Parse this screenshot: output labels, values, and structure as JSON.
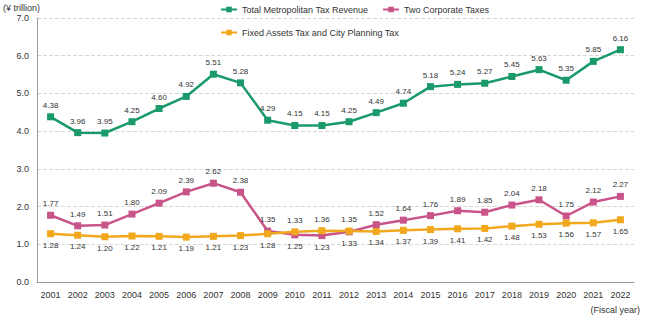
{
  "chart_data": {
    "type": "line",
    "y_label": "(¥ trillion)",
    "x_label": "(Fiscal year)",
    "categories": [
      "2001",
      "2002",
      "2003",
      "2004",
      "2005",
      "2006",
      "2007",
      "2008",
      "2009",
      "2010",
      "2011",
      "2012",
      "2013",
      "2014",
      "2015",
      "2016",
      "2017",
      "2018",
      "2019",
      "2020",
      "2021",
      "2022"
    ],
    "series": [
      {
        "name": "Total Metropolitan Tax Revenue",
        "color": "#1a9a6a",
        "marker": "square",
        "values": [
          4.38,
          3.96,
          3.95,
          4.25,
          4.6,
          4.92,
          5.51,
          5.28,
          4.29,
          4.15,
          4.15,
          4.25,
          4.49,
          4.74,
          5.18,
          5.24,
          5.27,
          5.45,
          5.63,
          5.35,
          5.85,
          6.16
        ],
        "value_labels": [
          "4.38",
          "3.96",
          "3.95",
          "4.25",
          "4.60",
          "4.92",
          "5.51",
          "5.28",
          "4.29",
          "4.15",
          "4.15",
          "4.25",
          "4.49",
          "4.74",
          "5.18",
          "5.24",
          "5.27",
          "5.45",
          "5.63",
          "5.35",
          "5.85",
          "6.16"
        ]
      },
      {
        "name": "Two Corporate Taxes",
        "color": "#c8548a",
        "marker": "square",
        "values": [
          1.77,
          1.49,
          1.51,
          1.8,
          2.09,
          2.39,
          2.62,
          2.38,
          1.35,
          1.25,
          1.23,
          1.33,
          1.52,
          1.64,
          1.76,
          1.89,
          1.85,
          2.04,
          2.18,
          1.75,
          2.12,
          2.27
        ],
        "value_labels": [
          "1.77",
          "1.49",
          "1.51",
          "1.80",
          "2.09",
          "2.39",
          "2.62",
          "2.38",
          "1.35",
          "1.25",
          "1.23",
          "1.33",
          "1.52",
          "1.64",
          "1.76",
          "1.89",
          "1.85",
          "2.04",
          "2.18",
          "1.75",
          "2.12",
          "2.27"
        ]
      },
      {
        "name": "Fixed Assets Tax and City Planning Tax",
        "color": "#f2a81d",
        "marker": "square",
        "values": [
          1.28,
          1.24,
          1.2,
          1.22,
          1.21,
          1.19,
          1.21,
          1.23,
          1.28,
          1.33,
          1.36,
          1.35,
          1.34,
          1.37,
          1.39,
          1.41,
          1.42,
          1.48,
          1.53,
          1.56,
          1.57,
          1.65
        ],
        "value_labels": [
          "1.28",
          "1.24",
          "1.20",
          "1.22",
          "1.21",
          "1.19",
          "1.21",
          "1.23",
          "1.28",
          "1.33",
          "1.36",
          "1.35",
          "1.34",
          "1.37",
          "1.39",
          "1.41",
          "1.42",
          "1.48",
          "1.53",
          "1.56",
          "1.57",
          "1.65"
        ]
      }
    ],
    "ylim": [
      0,
      7
    ],
    "yticks": [
      {
        "value": 0,
        "label": "0.0"
      },
      {
        "value": 1,
        "label": "1.0"
      },
      {
        "value": 2,
        "label": "2.0"
      },
      {
        "value": 3,
        "label": "3.0"
      },
      {
        "value": 4,
        "label": "4.0"
      },
      {
        "value": 5,
        "label": "5.0"
      },
      {
        "value": 6,
        "label": "6.0"
      },
      {
        "value": 7,
        "label": "7.0"
      }
    ],
    "grid": true,
    "legend": "top",
    "data_labels": true
  }
}
